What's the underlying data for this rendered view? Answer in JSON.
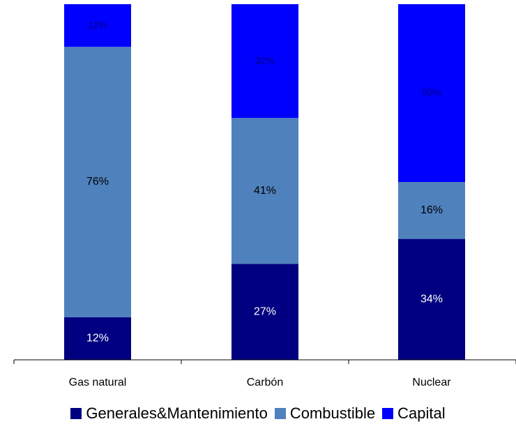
{
  "chart_data": {
    "type": "bar",
    "stacked": true,
    "normalized": true,
    "title": "",
    "xlabel": "",
    "ylabel": "",
    "ylim": [
      0,
      100
    ],
    "grid": false,
    "legend_position": "bottom",
    "categories": [
      "Gas natural",
      "Carbón",
      "Nuclear"
    ],
    "series": [
      {
        "name": "Generales&Mantenimiento",
        "color": "#000080",
        "label_color": "#ffffff",
        "values": [
          12,
          27,
          34
        ],
        "labels": [
          "12%",
          "27%",
          "34%"
        ]
      },
      {
        "name": "Combustible",
        "color": "#4f81bd",
        "label_color": "#000000",
        "values": [
          76,
          41,
          16
        ],
        "labels": [
          "76%",
          "41%",
          "16%"
        ]
      },
      {
        "name": "Capital",
        "color": "#0000ff",
        "label_color": "#000080",
        "values": [
          12,
          32,
          50
        ],
        "labels": [
          "12%",
          "32%",
          "50%"
        ]
      }
    ]
  }
}
